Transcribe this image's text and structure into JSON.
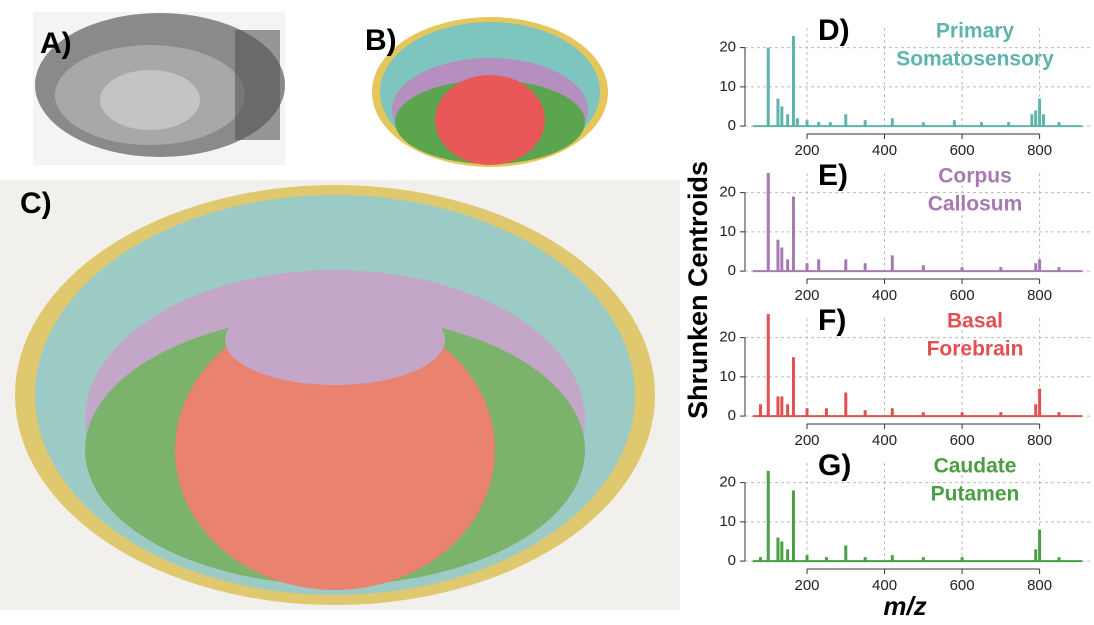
{
  "panels": [
    "A)",
    "B)",
    "C)"
  ],
  "y_label": "Shrunken Centroids",
  "x_label": "m/z",
  "chart_data": [
    {
      "type": "spectrum",
      "label": "D)",
      "title": [
        "Primary",
        "Somatosensory"
      ],
      "color": "#5fb3ad",
      "x": [
        100,
        125,
        135,
        150,
        165,
        175,
        200,
        230,
        260,
        300,
        350,
        420,
        500,
        580,
        650,
        720,
        780,
        790,
        800,
        810,
        850
      ],
      "values": [
        20,
        7,
        5,
        3,
        23,
        2,
        1.5,
        1,
        1,
        3,
        1.5,
        2,
        1,
        1.5,
        1,
        1,
        3,
        4,
        7,
        3,
        1
      ],
      "xlim": [
        40,
        930
      ],
      "ylim": [
        -1,
        25
      ],
      "xticks": [
        200,
        400,
        600,
        800
      ],
      "yticks": [
        0,
        10,
        20
      ],
      "grid": true
    },
    {
      "type": "spectrum",
      "label": "E)",
      "title": [
        "Corpus",
        "Callosum"
      ],
      "color": "#a67ab0",
      "x": [
        100,
        125,
        135,
        150,
        165,
        200,
        230,
        300,
        350,
        420,
        500,
        600,
        700,
        790,
        800,
        850
      ],
      "values": [
        25,
        8,
        6,
        3,
        19,
        2,
        3,
        3,
        2,
        4,
        1.5,
        1,
        1,
        2,
        3,
        1
      ],
      "xlim": [
        40,
        930
      ],
      "ylim": [
        -1,
        25
      ],
      "xticks": [
        200,
        400,
        600,
        800
      ],
      "yticks": [
        0,
        10,
        20
      ],
      "grid": true
    },
    {
      "type": "spectrum",
      "label": "F)",
      "title": [
        "Basal",
        "Forebrain"
      ],
      "color": "#e05050",
      "x": [
        80,
        100,
        125,
        135,
        150,
        165,
        200,
        250,
        300,
        350,
        420,
        500,
        600,
        700,
        790,
        800,
        850
      ],
      "values": [
        3,
        26,
        5,
        5,
        3,
        15,
        2,
        2,
        6,
        1.5,
        2,
        1,
        1,
        1,
        3,
        7,
        1
      ],
      "xlim": [
        40,
        930
      ],
      "ylim": [
        -1,
        25
      ],
      "xticks": [
        200,
        400,
        600,
        800
      ],
      "yticks": [
        0,
        10,
        20
      ],
      "grid": true
    },
    {
      "type": "spectrum",
      "label": "G)",
      "title": [
        "Caudate",
        "Putamen"
      ],
      "color": "#4a9e44",
      "x": [
        80,
        100,
        125,
        135,
        150,
        165,
        200,
        250,
        300,
        350,
        420,
        500,
        600,
        790,
        800,
        850
      ],
      "values": [
        1,
        23,
        6,
        5,
        3,
        18,
        1.5,
        1,
        4,
        1,
        1.5,
        1,
        1,
        3,
        8,
        1
      ],
      "xlim": [
        40,
        930
      ],
      "ylim": [
        -1,
        25
      ],
      "xticks": [
        200,
        400,
        600,
        800
      ],
      "yticks": [
        0,
        10,
        20
      ],
      "grid": true
    }
  ]
}
